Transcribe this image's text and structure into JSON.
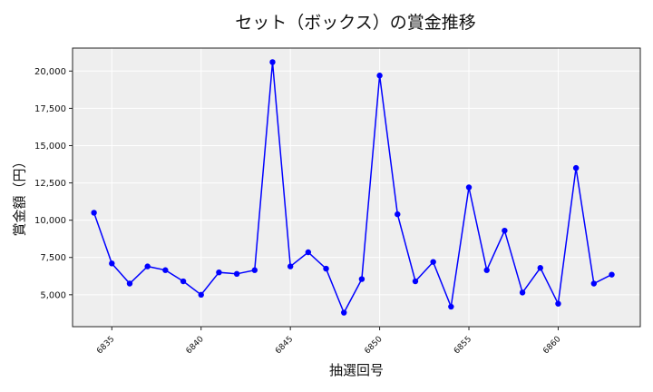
{
  "chart_data": {
    "type": "line",
    "title": "セット（ボックス）の賞金推移",
    "xlabel": "抽選回号",
    "ylabel": "賞金額（円）",
    "x": [
      6834,
      6835,
      6836,
      6837,
      6838,
      6839,
      6840,
      6841,
      6842,
      6843,
      6844,
      6845,
      6846,
      6847,
      6848,
      6849,
      6850,
      6851,
      6852,
      6853,
      6854,
      6855,
      6856,
      6857,
      6858,
      6859,
      6860,
      6861,
      6862,
      6863
    ],
    "series": [
      {
        "name": "賞金額",
        "color": "#0000ff",
        "values": [
          10500,
          7100,
          5750,
          6900,
          6650,
          5900,
          5000,
          6500,
          6400,
          6650,
          20600,
          6900,
          7850,
          6750,
          3800,
          6050,
          19700,
          10400,
          5900,
          7200,
          4200,
          12200,
          6650,
          9300,
          5150,
          6800,
          4400,
          13500,
          5750,
          6350
        ]
      }
    ],
    "xticks": [
      6835,
      6840,
      6845,
      6850,
      6855,
      6860
    ],
    "xtick_labels": [
      "6835",
      "6840",
      "6845",
      "6850",
      "6855",
      "6860"
    ],
    "yticks": [
      5000,
      7500,
      10000,
      12500,
      15000,
      17500,
      20000
    ],
    "ytick_labels": [
      "5,000",
      "7,500",
      "10,000",
      "12,500",
      "15,000",
      "17,500",
      "20,000"
    ],
    "xlim": [
      6832.8,
      6864.6
    ],
    "ylim": [
      2860,
      21540
    ],
    "grid": true,
    "legend": null,
    "plot_background": "#eeeeee"
  }
}
